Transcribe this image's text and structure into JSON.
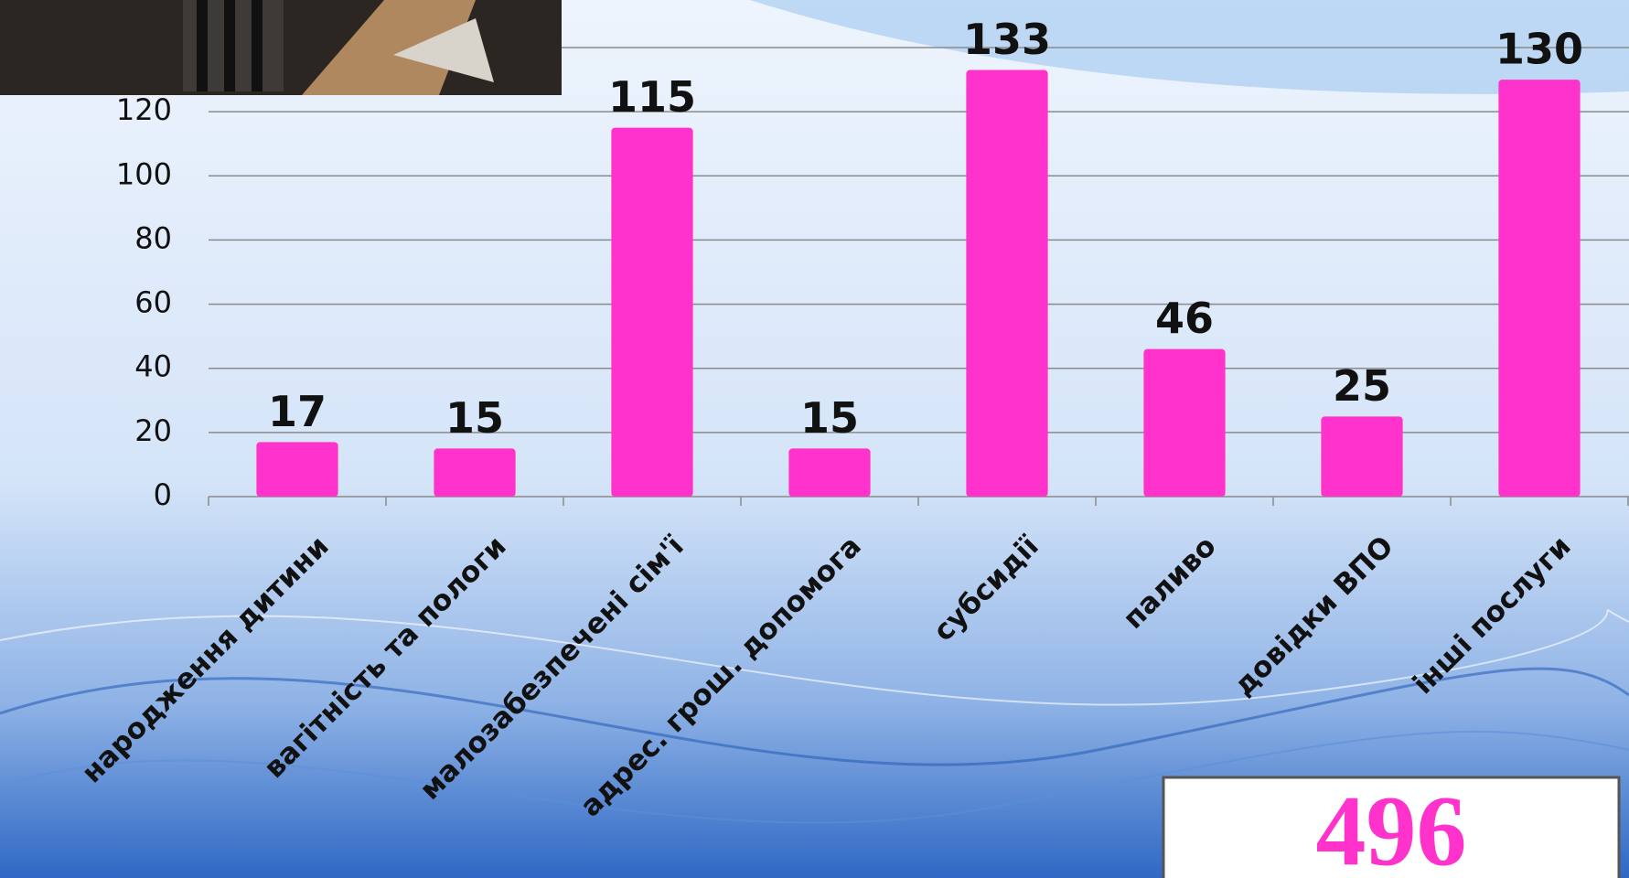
{
  "chart_data": {
    "type": "bar",
    "categories": [
      "народження дитини",
      "вагітність та пологи",
      "малозабезпечені сім'ї",
      "адрес. грош. допомога",
      "субсидії",
      "паливо",
      "довідки ВПО",
      "інші послуги"
    ],
    "values": [
      17,
      15,
      115,
      15,
      133,
      46,
      25,
      130
    ],
    "color": "#ff33cc",
    "ylim": [
      0,
      140
    ],
    "yticks": [
      0,
      20,
      40,
      60,
      80,
      100,
      120
    ],
    "grid": true,
    "total": 496
  }
}
